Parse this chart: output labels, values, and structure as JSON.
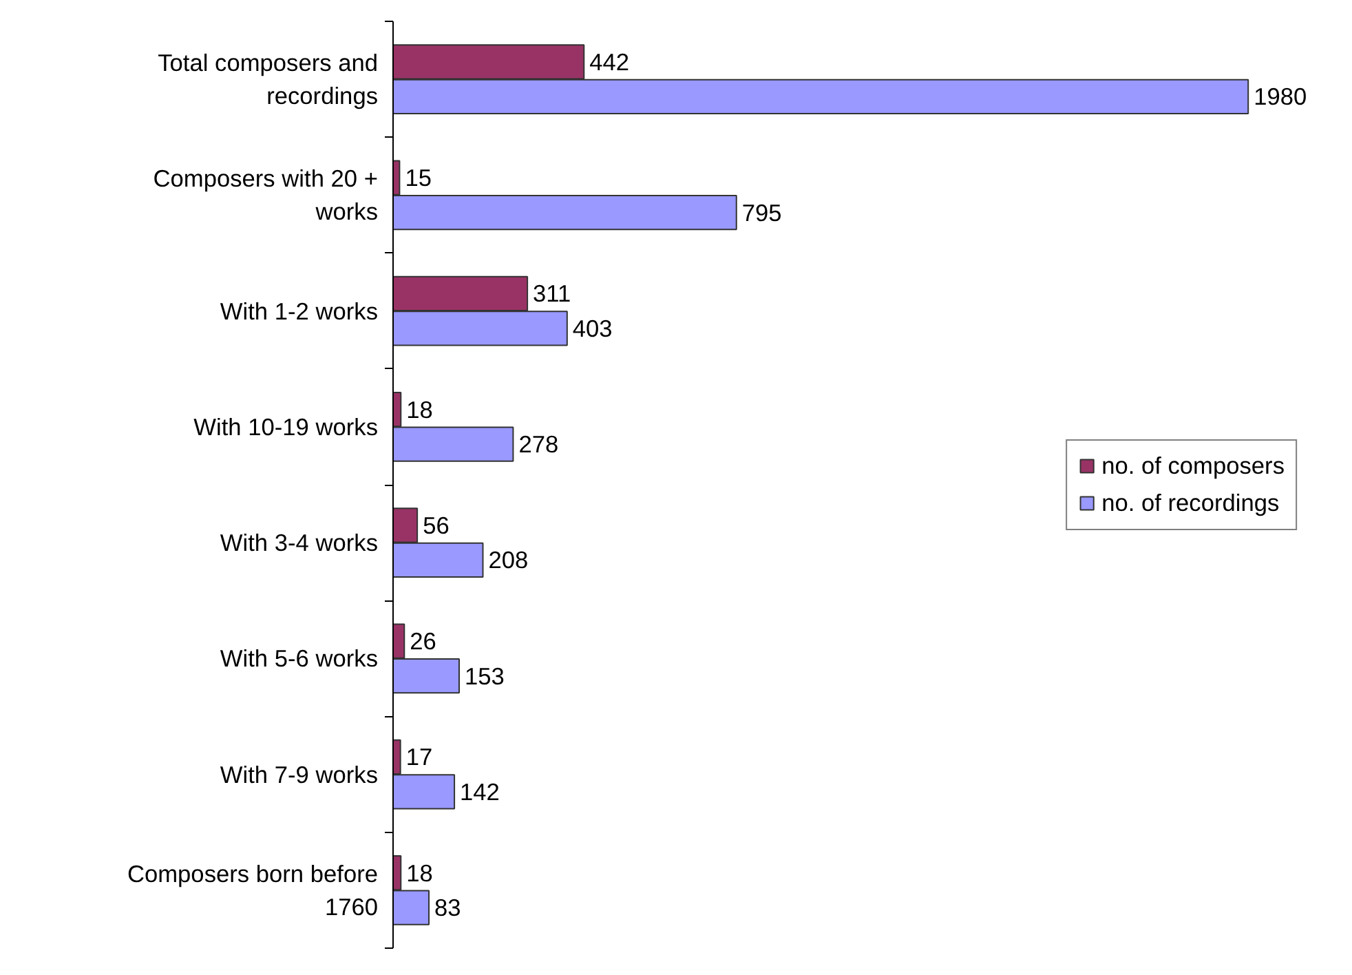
{
  "chart_data": {
    "type": "bar",
    "orientation": "horizontal",
    "categories": [
      "Total composers and recordings",
      "Composers with 20 + works",
      "With 1-2 works",
      "With 10-19 works",
      "With 3-4 works",
      "With 5-6 works",
      "With 7-9 works",
      "Composers born before 1760"
    ],
    "series": [
      {
        "name": "no. of composers",
        "color": "#993366",
        "values": [
          442,
          15,
          311,
          18,
          56,
          26,
          17,
          18
        ]
      },
      {
        "name": "no. of recordings",
        "color": "#9999ff",
        "values": [
          1980,
          795,
          403,
          278,
          208,
          153,
          142,
          83
        ]
      }
    ],
    "data_labels": true,
    "tick_labels": "y",
    "legend": "right",
    "grid": false
  }
}
